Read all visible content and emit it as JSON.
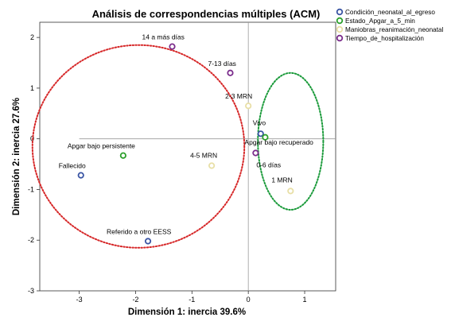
{
  "chart_data": {
    "type": "scatter",
    "title": "Análisis de correspondencias múltiples (ACM)",
    "xlabel": "Dimensión 1: inercia 39.6%",
    "ylabel": "Dimensión 2: inercia 27.6%",
    "xlim": [
      -3.7,
      1.55
    ],
    "ylim": [
      -3,
      2.3
    ],
    "xticks": [
      -3,
      -2,
      -1,
      0,
      1
    ],
    "yticks": [
      -3,
      -2,
      -1,
      0,
      1,
      2
    ],
    "grid": false,
    "reference_lines": [
      0,
      0
    ],
    "legend_position": "top-right",
    "series": [
      {
        "name": "Condición_neonatal_al_egreso",
        "color": "#3a55a4",
        "points": [
          {
            "label": "Vivo",
            "x": 0.22,
            "y": 0.1
          },
          {
            "label": "Fallecido",
            "x": -2.97,
            "y": -0.72
          },
          {
            "label": "Referido a otro EESS",
            "x": -1.78,
            "y": -2.02
          }
        ]
      },
      {
        "name": "Estado_Apgar_a_5_min",
        "color": "#2ca02c",
        "points": [
          {
            "label": "Apgar bajo recuperado",
            "x": 0.3,
            "y": 0.03
          },
          {
            "label": "Apgar bajo persistente",
            "x": -2.22,
            "y": -0.33
          }
        ]
      },
      {
        "name": "Maniobras_reanimación_neonatal",
        "color": "#e8dfa6",
        "points": [
          {
            "label": "2-3 MRN",
            "x": 0.0,
            "y": 0.65
          },
          {
            "label": "4-5 MRN",
            "x": -0.65,
            "y": -0.53
          },
          {
            "label": "1 MRN",
            "x": 0.75,
            "y": -1.03
          }
        ]
      },
      {
        "name": "Tiempo_de_hospitalización",
        "color": "#7b2d8c",
        "points": [
          {
            "label": "14 a más días",
            "x": -1.35,
            "y": 1.82
          },
          {
            "label": "7-13 días",
            "x": -0.32,
            "y": 1.3
          },
          {
            "label": "0-6 días",
            "x": 0.13,
            "y": -0.28
          }
        ]
      }
    ],
    "ellipses": [
      {
        "color": "#d62728",
        "style": "dotted",
        "cx": -1.95,
        "cy": -0.15,
        "rx": 1.88,
        "ry": 2.0
      },
      {
        "color": "#1a9a3a",
        "style": "dotted",
        "cx": 0.75,
        "cy": -0.05,
        "rx": 0.58,
        "ry": 1.35
      }
    ]
  }
}
